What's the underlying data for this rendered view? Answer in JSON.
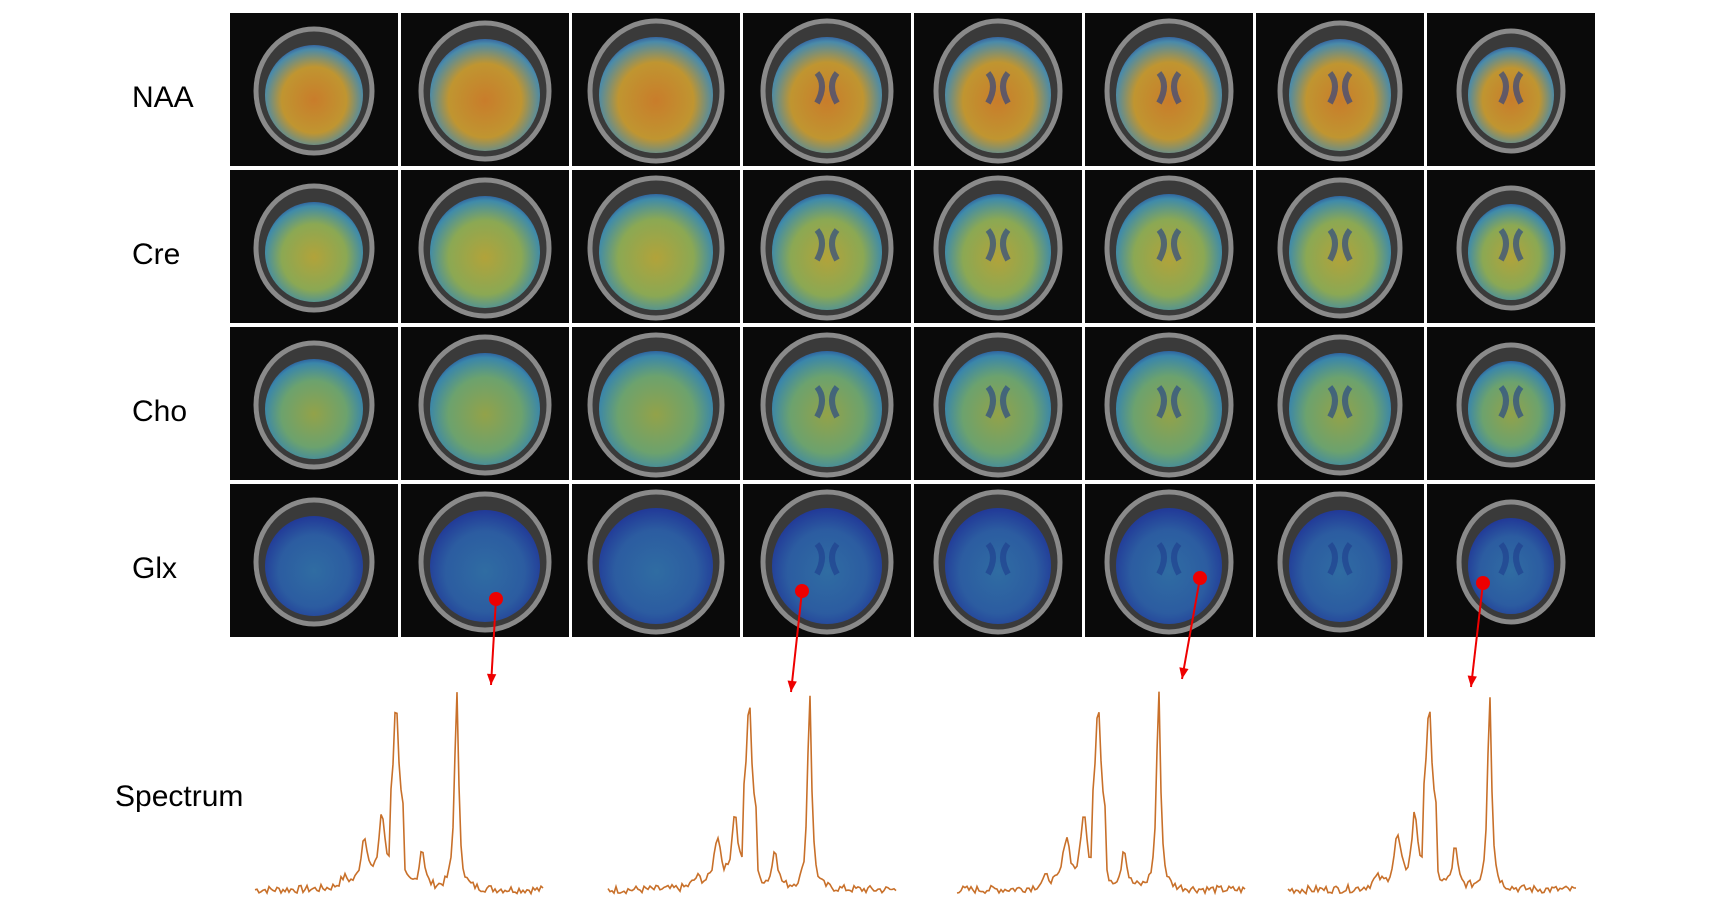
{
  "row_labels": [
    "NAA",
    "Cre",
    "Cho",
    "Glx"
  ],
  "spectrum": {
    "label": "Spectrum"
  }
}
